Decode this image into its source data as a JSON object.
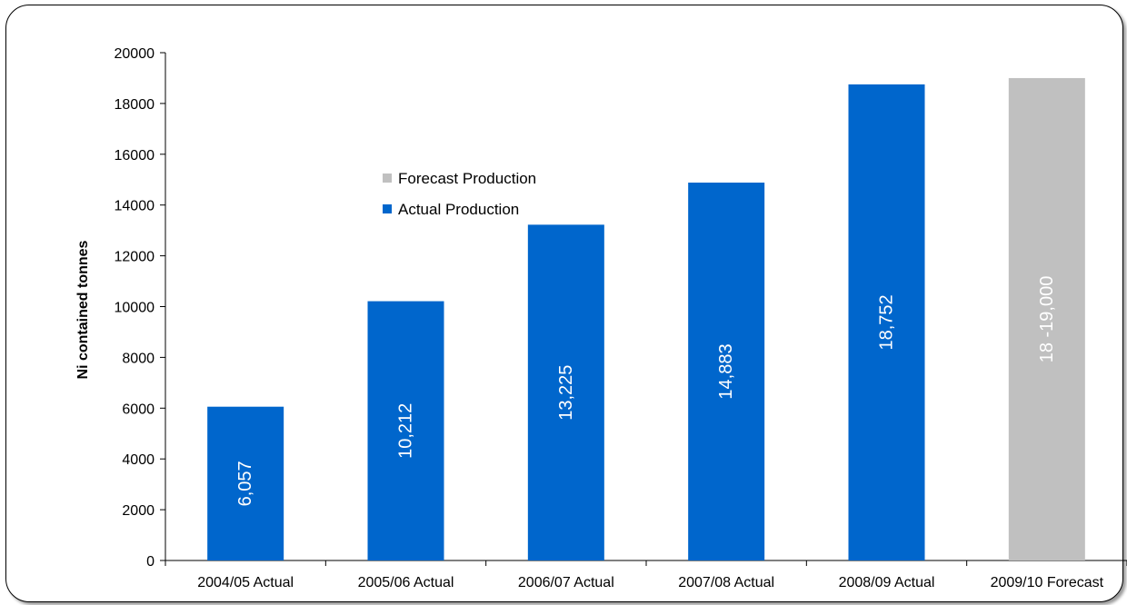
{
  "chart_data": {
    "type": "bar",
    "ylabel": "Ni contained tonnes",
    "xlabel": "",
    "ylim": [
      0,
      20000
    ],
    "yticks": [
      0,
      2000,
      4000,
      6000,
      8000,
      10000,
      12000,
      14000,
      16000,
      18000,
      20000
    ],
    "categories": [
      "2004/05 Actual",
      "2005/06 Actual",
      "2006/07 Actual",
      "2007/08 Actual",
      "2008/09 Actual",
      "2009/10 Forecast"
    ],
    "series": [
      {
        "name": "Actual Production",
        "color": "#0066CC",
        "values": [
          6057,
          10212,
          13225,
          14883,
          18752,
          null
        ]
      },
      {
        "name": "Forecast Production",
        "color": "#C0C0C0",
        "values": [
          null,
          null,
          null,
          null,
          null,
          19000
        ]
      }
    ],
    "data_labels": [
      "6,057",
      "10,212",
      "13,225",
      "14,883",
      "18,752",
      "18 -19,000"
    ],
    "legend": {
      "position": "upper-left-inside",
      "order": [
        "Forecast Production",
        "Actual Production"
      ]
    },
    "grid": false
  }
}
